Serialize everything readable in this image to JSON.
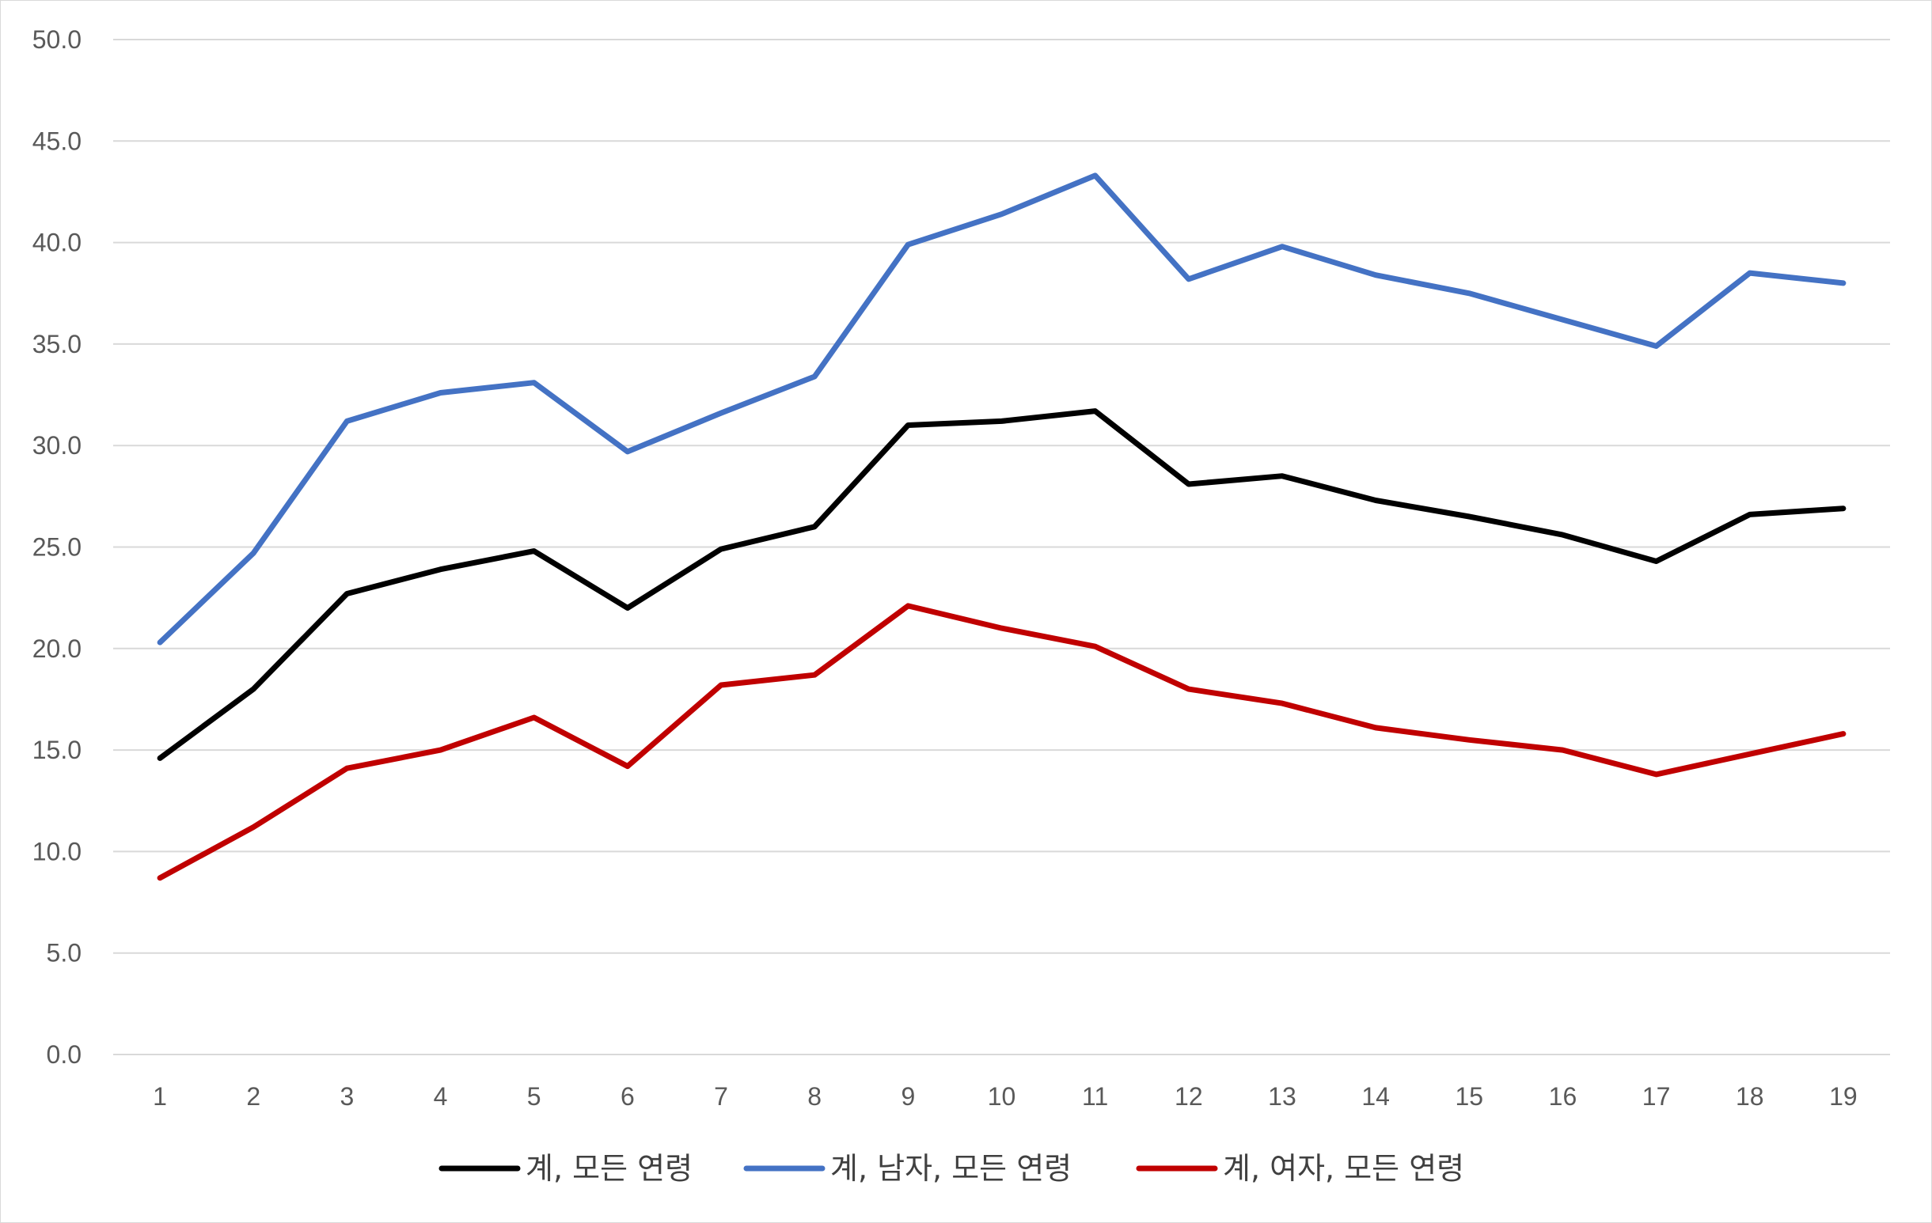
{
  "chart_data": {
    "type": "line",
    "title": "",
    "xlabel": "",
    "ylabel": "",
    "categories": [
      "1",
      "2",
      "3",
      "4",
      "5",
      "6",
      "7",
      "8",
      "9",
      "10",
      "11",
      "12",
      "13",
      "14",
      "15",
      "16",
      "17",
      "18",
      "19"
    ],
    "ylim": [
      0,
      50
    ],
    "yticks": [
      "0.0",
      "5.0",
      "10.0",
      "15.0",
      "20.0",
      "25.0",
      "30.0",
      "35.0",
      "40.0",
      "45.0",
      "50.0"
    ],
    "grid": true,
    "legend_position": "bottom",
    "series": [
      {
        "name": "계, 모든 연령",
        "color": "#000000",
        "values": [
          14.6,
          18.0,
          22.7,
          23.9,
          24.8,
          22.0,
          24.9,
          26.0,
          31.0,
          31.2,
          31.7,
          28.1,
          28.5,
          27.3,
          26.5,
          25.6,
          24.3,
          26.6,
          26.9
        ]
      },
      {
        "name": "계, 남자, 모든 연령",
        "color": "#4472C4",
        "values": [
          20.3,
          24.7,
          31.2,
          32.6,
          33.1,
          29.7,
          31.6,
          33.4,
          39.9,
          41.4,
          43.3,
          38.2,
          39.8,
          38.4,
          37.5,
          36.2,
          34.9,
          38.5,
          38.0
        ]
      },
      {
        "name": "계, 여자, 모든 연령",
        "color": "#C00000",
        "values": [
          8.7,
          11.2,
          14.1,
          15.0,
          16.6,
          14.2,
          18.2,
          18.7,
          22.1,
          21.0,
          20.1,
          18.0,
          17.3,
          16.1,
          15.5,
          15.0,
          13.8,
          14.8,
          15.8
        ]
      }
    ]
  }
}
